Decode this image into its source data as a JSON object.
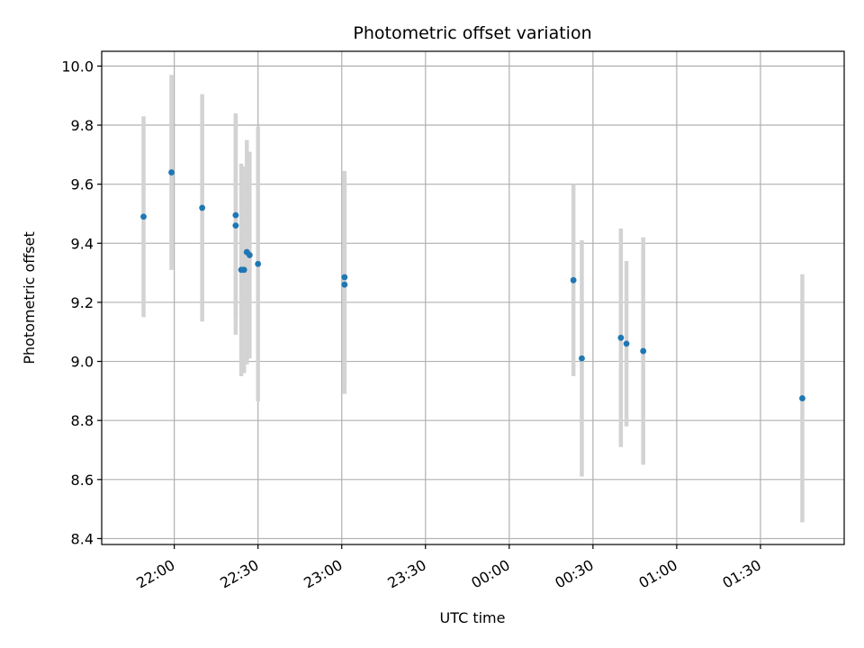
{
  "chart_data": {
    "type": "scatter",
    "title": "Photometric offset variation",
    "xlabel": "UTC time",
    "ylabel": "Photometric offset",
    "x_tick_labels": [
      "22:00",
      "22:30",
      "23:00",
      "23:30",
      "00:00",
      "00:30",
      "01:00",
      "01:30"
    ],
    "x_tick_minutes": [
      1320,
      1350,
      1380,
      1410,
      1440,
      1470,
      1500,
      1530
    ],
    "xlim_minutes": [
      1294,
      1560
    ],
    "y_ticks": [
      8.4,
      8.6,
      8.8,
      9.0,
      9.2,
      9.4,
      9.6,
      9.8,
      10.0
    ],
    "y_tick_labels": [
      "8.4",
      "8.6",
      "8.8",
      "9.0",
      "9.2",
      "9.4",
      "9.6",
      "9.8",
      "10.0"
    ],
    "ylim": [
      8.38,
      10.05
    ],
    "grid": true,
    "colors": {
      "point": "#1f77b4",
      "errorbar": "#d3d3d3",
      "grid": "#b0b0b0"
    },
    "points": [
      {
        "time": "21:49",
        "y": 9.49,
        "err": 0.34
      },
      {
        "time": "21:59",
        "y": 9.64,
        "err": 0.33
      },
      {
        "time": "22:10",
        "y": 9.52,
        "err": 0.385
      },
      {
        "time": "22:22",
        "y": 9.495,
        "err": 0.345
      },
      {
        "time": "22:22",
        "y": 9.46,
        "err": 0.37
      },
      {
        "time": "22:24",
        "y": 9.31,
        "err": 0.36
      },
      {
        "time": "22:25",
        "y": 9.31,
        "err": 0.35
      },
      {
        "time": "22:26",
        "y": 9.37,
        "err": 0.38
      },
      {
        "time": "22:26",
        "y": 9.37,
        "err": 0.32
      },
      {
        "time": "22:27",
        "y": 9.36,
        "err": 0.35
      },
      {
        "time": "22:30",
        "y": 9.33,
        "err": 0.465
      },
      {
        "time": "23:01",
        "y": 9.285,
        "err": 0.36
      },
      {
        "time": "23:01",
        "y": 9.26,
        "err": 0.37
      },
      {
        "time": "00:23",
        "y": 9.275,
        "err": 0.325
      },
      {
        "time": "00:26",
        "y": 9.01,
        "err": 0.4
      },
      {
        "time": "00:40",
        "y": 9.08,
        "err": 0.37
      },
      {
        "time": "00:42",
        "y": 9.06,
        "err": 0.28
      },
      {
        "time": "00:48",
        "y": 9.035,
        "err": 0.385
      },
      {
        "time": "01:45",
        "y": 8.875,
        "err": 0.42
      }
    ]
  }
}
